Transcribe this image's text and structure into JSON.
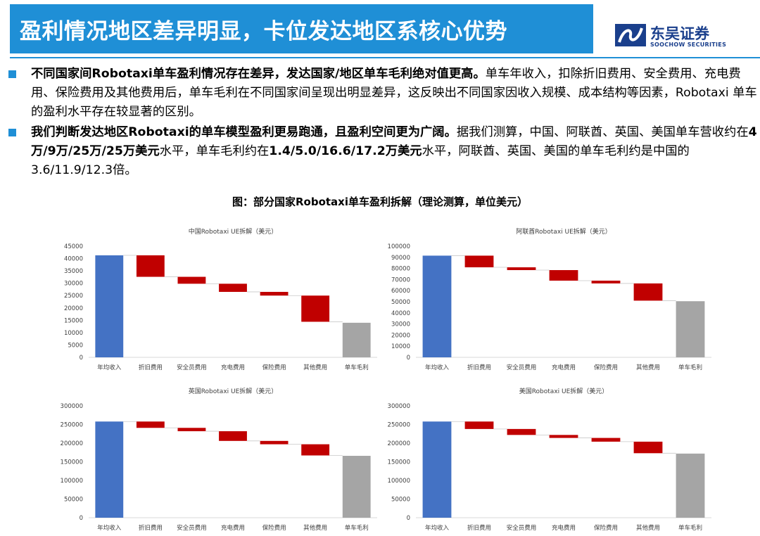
{
  "header": {
    "title": "盈利情况地区差异明显，卡位发达地区系核心优势"
  },
  "logo": {
    "name_cn": "东吴证券",
    "name_en": "SOOCHOW SECURITIES"
  },
  "bullets": [
    {
      "bold": "不同国家间Robotaxi单车盈利情况存在差异，发达国家/地区单车毛利绝对值更高。",
      "text": "单车年收入，扣除折旧费用、安全费用、充电费用、保险费用及其他费用后，单车毛利在不同国家间呈现出明显差异，这反映出不同国家因收入规模、成本结构等因素，Robotaxi 单车的盈利水平存在较显著的区别。"
    },
    {
      "bold": "我们判断发达地区Robotaxi的单车模型盈利更易跑通，且盈利空间更为广阔。",
      "t1": "据我们测算，中国、阿联酋、英国、美国单车营收约在",
      "b1": "4万/9万/25万/25万美元",
      "t2": "水平，单车毛利约在",
      "b2": "1.4/5.0/16.6/17.2万美元",
      "t3": "水平，阿联酋、英国、美国的单车毛利约是中国的3.6/11.9/12.3倍。"
    }
  ],
  "figure_caption": "图：部分国家Robotaxi单车盈利拆解（理论测算，单位美元）",
  "colors": {
    "total": "#4472c4",
    "cost": "#c00000",
    "profit": "#a5a5a5",
    "header": "#1f8fd6",
    "brand": "#1a3f8c"
  },
  "chart_data": [
    {
      "type": "bar",
      "title": "中国Robotaxi UE拆解（美元）",
      "categories": [
        "年均收入",
        "折旧费用",
        "安全员费用",
        "充电费用",
        "保险费用",
        "其他费用",
        "单车毛利"
      ],
      "values": [
        41300,
        8700,
        2800,
        3300,
        1500,
        10600,
        14000
      ],
      "ylim": [
        0,
        45000
      ],
      "yticks": [
        0,
        5000,
        10000,
        15000,
        20000,
        25000,
        30000,
        35000,
        40000,
        45000
      ],
      "grid": false
    },
    {
      "type": "bar",
      "title": "阿联酋Robotaxi UE拆解（美元）",
      "categories": [
        "年均收入",
        "折旧费用",
        "安全员费用",
        "充电费用",
        "保险费用",
        "其他费用",
        "单车毛利"
      ],
      "values": [
        91500,
        10500,
        2500,
        9500,
        2500,
        15500,
        50500
      ],
      "ylim": [
        0,
        100000
      ],
      "yticks": [
        0,
        10000,
        20000,
        30000,
        40000,
        50000,
        60000,
        70000,
        80000,
        90000,
        100000
      ],
      "grid": false
    },
    {
      "type": "bar",
      "title": "英国Robotaxi UE拆解（美元）",
      "categories": [
        "年均收入",
        "折旧费用",
        "安全员费用",
        "充电费用",
        "保险费用",
        "其他费用",
        "单车毛利"
      ],
      "values": [
        258000,
        17000,
        9000,
        26000,
        9000,
        30000,
        166000
      ],
      "ylim": [
        0,
        300000
      ],
      "yticks": [
        0,
        50000,
        100000,
        150000,
        200000,
        250000,
        300000
      ],
      "grid": false
    },
    {
      "type": "bar",
      "title": "美国Robotaxi UE拆解（美元）",
      "categories": [
        "年均收入",
        "折旧费用",
        "安全员费用",
        "充电费用",
        "保险费用",
        "其他费用",
        "单车毛利"
      ],
      "values": [
        258000,
        20000,
        16000,
        8000,
        10000,
        31000,
        172000
      ],
      "ylim": [
        0,
        300000
      ],
      "yticks": [
        0,
        50000,
        100000,
        150000,
        200000,
        250000,
        300000
      ],
      "grid": false
    }
  ]
}
